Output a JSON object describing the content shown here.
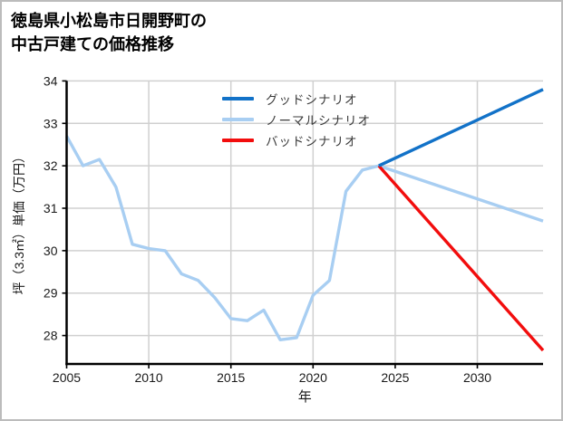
{
  "window": {
    "background": "#ffffff",
    "border_color": "#bcbcbc"
  },
  "title": {
    "line1": "徳島県小松島市日開野町の",
    "line2": "中古戸建ての価格推移"
  },
  "legend": {
    "items": [
      {
        "label": "グッドシナリオ",
        "color": "#1272c8"
      },
      {
        "label": "ノーマルシナリオ",
        "color": "#a8cef2"
      },
      {
        "label": "バッドシナリオ",
        "color": "#f20d0d"
      }
    ]
  },
  "chart_data": {
    "type": "line",
    "title": "徳島県小松島市日開野町の中古戸建ての価格推移",
    "xlabel": "年",
    "ylabel": "坪（3.3㎡）単価（万円）",
    "xlim": [
      2005,
      2034
    ],
    "ylim": [
      27.33,
      34
    ],
    "xticks": [
      2005,
      2010,
      2015,
      2020,
      2025,
      2030
    ],
    "yticks": [
      28,
      29,
      30,
      31,
      32,
      33,
      34
    ],
    "grid": true,
    "grid_color": "#d0d0d0",
    "axis_color": "#000000",
    "tick_label_color": "#1a1a1a",
    "legend_position": "upper center",
    "series": [
      {
        "name": "price_history",
        "in_legend": false,
        "color": "#a8cef2",
        "x": [
          2005,
          2006,
          2007,
          2008,
          2009,
          2010,
          2011,
          2012,
          2013,
          2014,
          2015,
          2016,
          2017,
          2018,
          2019,
          2020,
          2021,
          2022,
          2023,
          2024
        ],
        "y": [
          32.7,
          32.0,
          32.15,
          31.5,
          30.15,
          30.05,
          30.0,
          29.45,
          29.3,
          28.9,
          28.4,
          28.35,
          28.6,
          27.9,
          27.95,
          28.95,
          29.3,
          31.4,
          31.9,
          32.0
        ]
      },
      {
        "name": "ノーマルシナリオ",
        "in_legend": true,
        "color": "#a8cef2",
        "x": [
          2024,
          2034
        ],
        "y": [
          32.0,
          30.7
        ]
      },
      {
        "name": "バッドシナリオ",
        "in_legend": true,
        "color": "#f20d0d",
        "x": [
          2024,
          2034
        ],
        "y": [
          32.0,
          27.65
        ]
      },
      {
        "name": "グッドシナリオ",
        "in_legend": true,
        "color": "#1272c8",
        "x": [
          2024,
          2034
        ],
        "y": [
          32.0,
          33.8
        ]
      }
    ]
  }
}
